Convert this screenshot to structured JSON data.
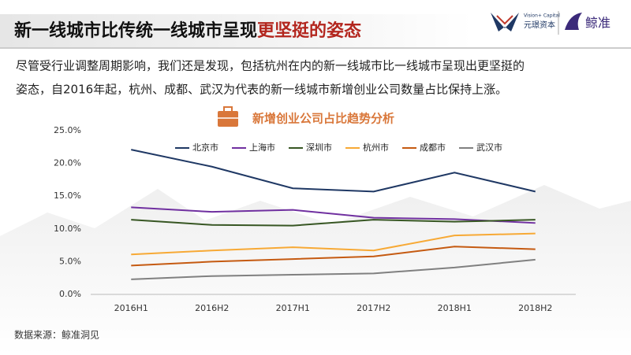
{
  "header": {
    "title_main": "新一线城市比传统一线城市呈现",
    "title_highlight": "更坚挺的姿态",
    "logo_vision_en": "Vision+ Capital",
    "logo_vision_cn": "元璟资本",
    "logo_jingzhun": "鲸准"
  },
  "intro": [
    "尽管受行业调整周期影响，我们还是发现，包括杭州在内的新一线城市比一线城市呈现出更坚挺的",
    "姿态，自2016年起，杭州、成都、武汉为代表的新一线城市新增创业公司数量占比保持上涨。"
  ],
  "source": "数据来源：鲸准洞见",
  "chart_data": {
    "type": "line",
    "title": "新增创业公司占比趋势分析",
    "categories": [
      "2016H1",
      "2016H2",
      "2017H1",
      "2017H2",
      "2018H1",
      "2018H2"
    ],
    "series": [
      {
        "name": "北京市",
        "color": "#1f3864",
        "values": [
          22.1,
          19.5,
          16.2,
          15.7,
          18.6,
          15.7
        ]
      },
      {
        "name": "上海市",
        "color": "#7030a0",
        "values": [
          13.3,
          12.6,
          12.9,
          11.7,
          11.5,
          10.9
        ]
      },
      {
        "name": "深圳市",
        "color": "#375623",
        "values": [
          11.4,
          10.6,
          10.5,
          11.4,
          11.1,
          11.4
        ]
      },
      {
        "name": "杭州市",
        "color": "#f7a935",
        "values": [
          6.1,
          6.7,
          7.2,
          6.7,
          9.0,
          9.3
        ]
      },
      {
        "name": "成都市",
        "color": "#c55a11",
        "values": [
          4.4,
          5.0,
          5.4,
          5.8,
          7.3,
          6.9
        ]
      },
      {
        "name": "武汉市",
        "color": "#808080",
        "values": [
          2.3,
          2.8,
          3.0,
          3.2,
          4.1,
          5.3
        ]
      }
    ],
    "ylim": [
      0,
      25
    ],
    "yticks": [
      {
        "value": 0,
        "label": "0.0%"
      },
      {
        "value": 5,
        "label": "5.0%"
      },
      {
        "value": 10,
        "label": "10.0%"
      },
      {
        "value": 15,
        "label": "15.0%"
      },
      {
        "value": 20,
        "label": "20.0%"
      },
      {
        "value": 25,
        "label": "25.0%"
      }
    ],
    "legend": "top"
  }
}
